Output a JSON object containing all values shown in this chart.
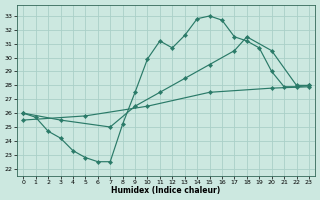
{
  "bg_color": "#cce8e0",
  "grid_color": "#aad0c8",
  "line_color": "#2a7a68",
  "xlabel": "Humidex (Indice chaleur)",
  "xlim": [
    -0.5,
    23.5
  ],
  "ylim": [
    21.5,
    33.8
  ],
  "yticks": [
    22,
    23,
    24,
    25,
    26,
    27,
    28,
    29,
    30,
    31,
    32,
    33
  ],
  "xticks": [
    0,
    1,
    2,
    3,
    4,
    5,
    6,
    7,
    8,
    9,
    10,
    11,
    12,
    13,
    14,
    15,
    16,
    17,
    18,
    19,
    20,
    21,
    22,
    23
  ],
  "line1_x": [
    0,
    1,
    2,
    3,
    4,
    5,
    6,
    7,
    8,
    9,
    10,
    11,
    12,
    13,
    14,
    15,
    16,
    17,
    18,
    19,
    20,
    21,
    22,
    23
  ],
  "line1_y": [
    26.0,
    25.7,
    24.7,
    24.2,
    23.3,
    22.8,
    22.5,
    22.5,
    25.2,
    27.5,
    29.9,
    31.2,
    30.7,
    31.6,
    32.8,
    33.0,
    32.7,
    31.5,
    31.2,
    30.7,
    29.0,
    27.9,
    27.9,
    28.0
  ],
  "line2_x": [
    0,
    3,
    7,
    9,
    11,
    13,
    15,
    17,
    18,
    20,
    22,
    23
  ],
  "line2_y": [
    26.0,
    25.5,
    25.0,
    26.5,
    27.5,
    28.5,
    29.5,
    30.5,
    31.5,
    30.5,
    28.0,
    28.0
  ],
  "line3_x": [
    0,
    5,
    10,
    15,
    20,
    23
  ],
  "line3_y": [
    25.5,
    25.8,
    26.5,
    27.5,
    27.8,
    27.9
  ]
}
